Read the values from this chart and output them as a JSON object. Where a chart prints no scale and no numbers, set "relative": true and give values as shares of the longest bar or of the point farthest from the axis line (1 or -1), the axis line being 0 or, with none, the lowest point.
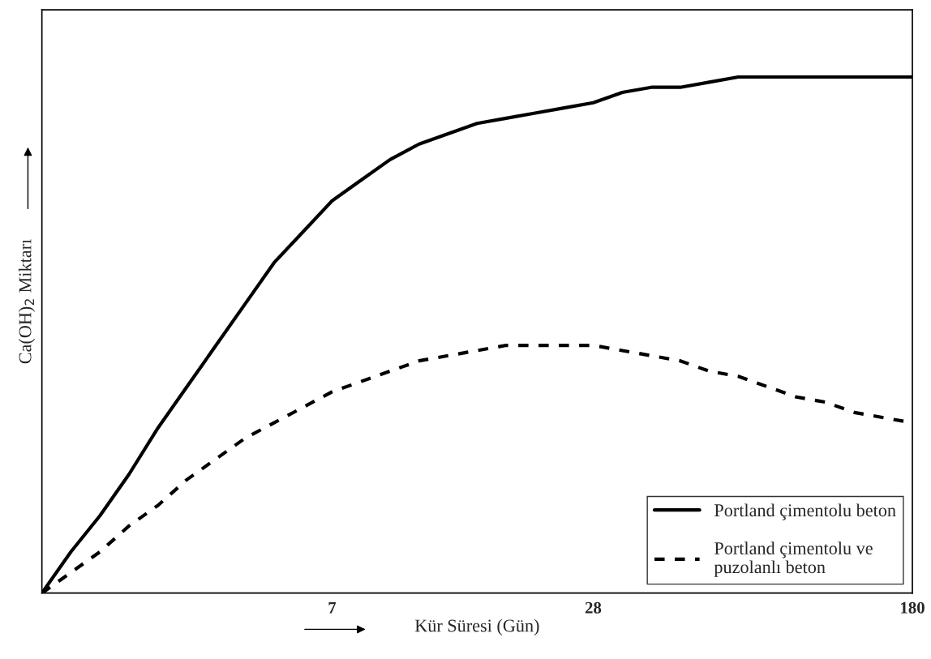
{
  "chart_data": {
    "type": "line",
    "relative": true,
    "xlabel": "Kür Süresi (Gün)",
    "ylabel": "Ca(OH)$_{2}$ Miktarı",
    "legend": "bottom right",
    "grid": false,
    "categories": [
      null,
      null,
      null,
      null,
      null,
      null,
      null,
      null,
      null,
      null,
      "7",
      null,
      null,
      null,
      null,
      null,
      null,
      null,
      null,
      "28",
      null,
      null,
      null,
      null,
      null,
      null,
      null,
      null,
      null,
      null,
      "180"
    ],
    "series": [
      {
        "name": "Portland çimentolu beton",
        "color": "#000000",
        "line_style": "solid",
        "values": [
          0,
          0.08,
          0.15,
          0.23,
          0.32,
          0.4,
          0.48,
          0.56,
          0.64,
          0.7,
          0.76,
          0.8,
          0.84,
          0.87,
          0.89,
          0.91,
          0.92,
          0.93,
          0.94,
          0.95,
          0.97,
          0.98,
          0.98,
          0.99,
          1.0,
          1.0,
          1.0,
          1.0,
          1.0,
          1.0,
          1
        ]
      },
      {
        "name": "Portland çimentolu ve\npuzolanlı beton",
        "color": "#000000",
        "line_style": "dashed",
        "values": [
          0,
          0.04,
          0.08,
          0.13,
          0.17,
          0.22,
          0.26,
          0.3,
          0.33,
          0.36,
          0.39,
          0.41,
          0.43,
          0.45,
          0.46,
          0.47,
          0.48,
          0.48,
          0.48,
          0.48,
          0.47,
          0.46,
          0.45,
          0.43,
          0.42,
          0.4,
          0.38,
          0.37,
          0.35,
          0.34,
          0.33
        ]
      }
    ]
  }
}
